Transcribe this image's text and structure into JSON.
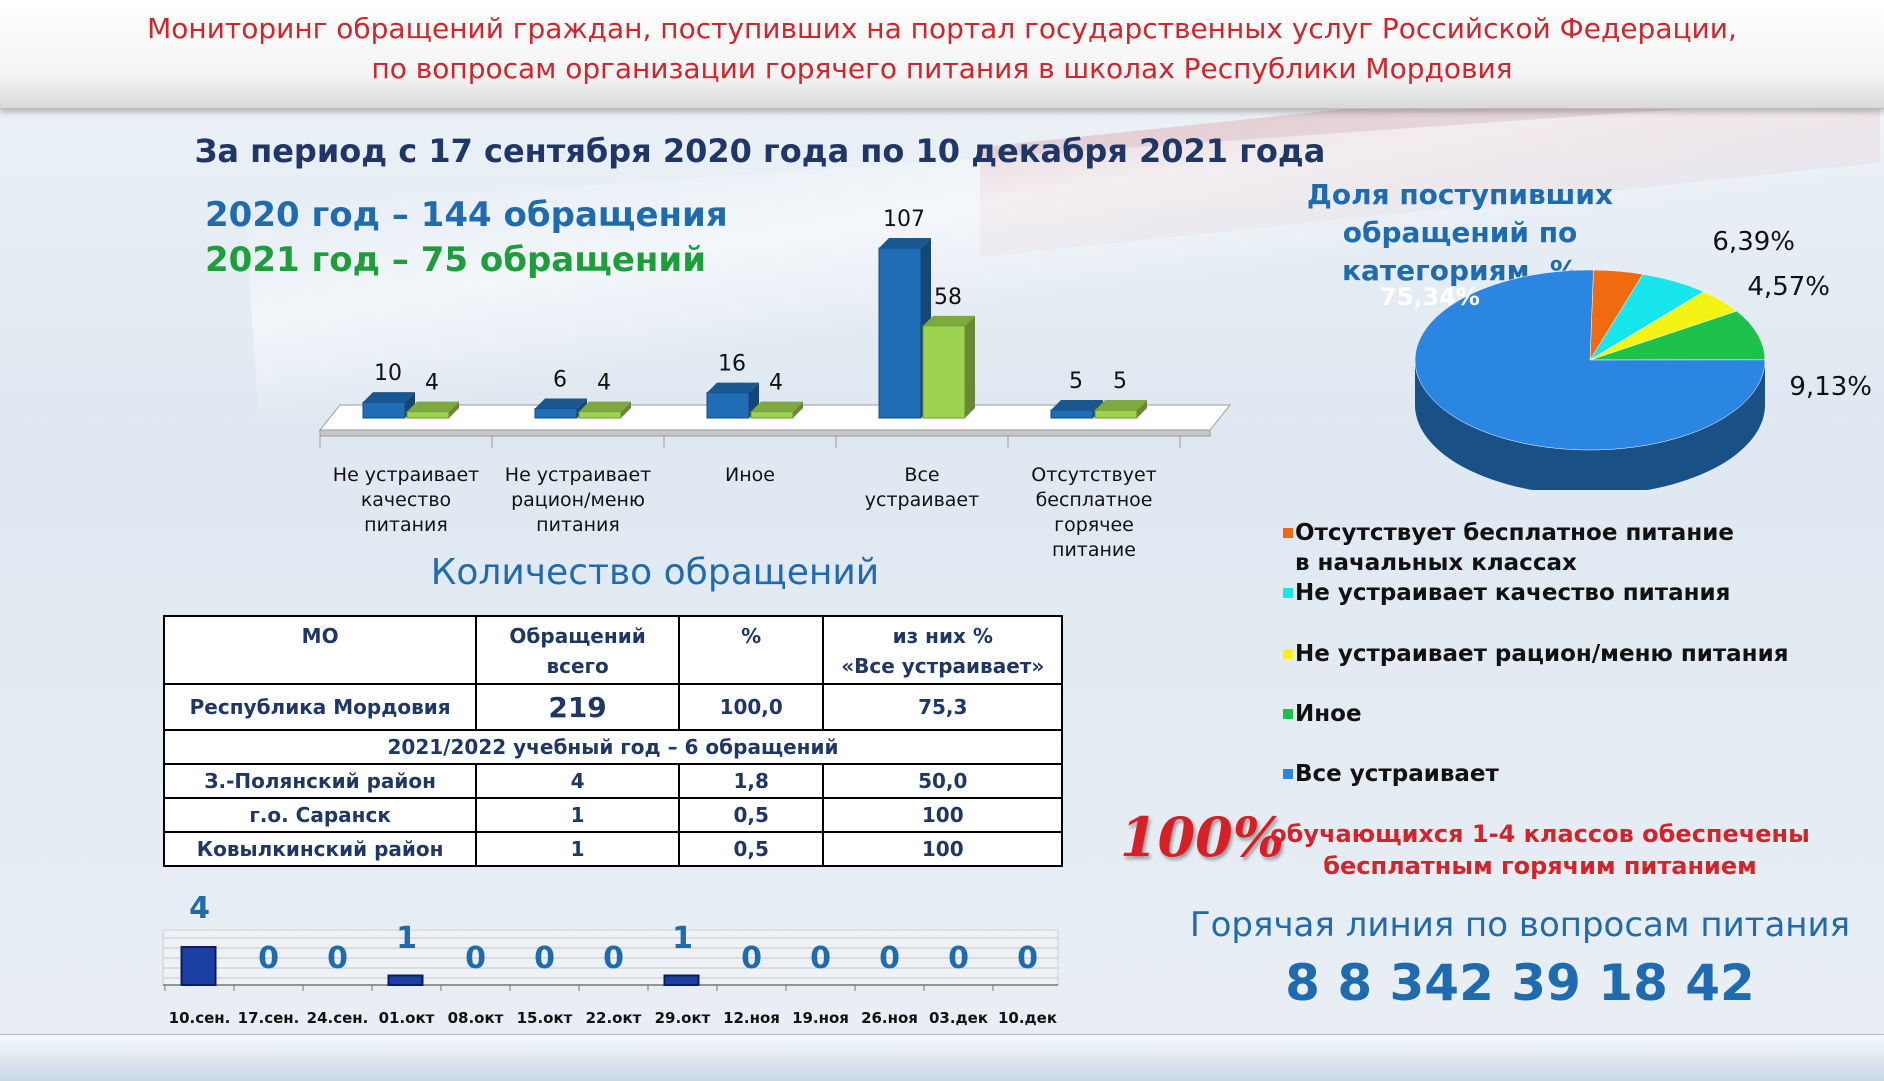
{
  "header": {
    "line1": "Мониторинг обращений граждан, поступивших на портал государственных услуг Российской Федерации,",
    "line2": "по вопросам организации горячего питания в школах Республики Мордовия"
  },
  "period": "За период с 17 сентября 2020 года по 10 декабря 2021 года",
  "totals": {
    "y2020": "2020 год – 144 обращения",
    "y2021": "2021 год – 75 обращений"
  },
  "chart_data": [
    {
      "type": "bar",
      "categories": [
        "Не устраивает качество питания",
        "Не устраивает рацион/меню питания",
        "Иное",
        "Все устраивает",
        "Отсутствует бесплатное горячее питание"
      ],
      "category_lines": [
        [
          "Не устраивает",
          "качество",
          "питания"
        ],
        [
          "Не устраивает",
          "рацион/меню",
          "питания"
        ],
        [
          "Иное"
        ],
        [
          "Все",
          "устраивает"
        ],
        [
          "Отсутствует",
          "бесплатное",
          "горячее",
          "питание"
        ]
      ],
      "series": [
        {
          "values": [
            10,
            6,
            16,
            107,
            5
          ]
        },
        {
          "values": [
            4,
            4,
            4,
            58,
            5
          ]
        }
      ],
      "colors": [
        "#1f6db4",
        "#9ed34f"
      ]
    },
    {
      "type": "pie",
      "title": "Доля поступивших обращений по категориям, %",
      "slices": [
        {
          "label": "Все устраивает",
          "value": 75.34,
          "text": "75,34%",
          "color": "#2a86e0"
        },
        {
          "label": "Отсутствует бесплатное питание в начальных классах",
          "value": 4.57,
          "text": "4,57%",
          "color": "#f26a10"
        },
        {
          "label": "Не устраивает качество питания",
          "value": 6.39,
          "text": "6,39%",
          "color": "#17e6ee"
        },
        {
          "label": "Не устраивает рацион/меню питания",
          "value": 4.57,
          "text": "4,57%",
          "color": "#f4f414"
        },
        {
          "label": "Иное",
          "value": 9.13,
          "text": "9,13%",
          "color": "#1ec24a"
        }
      ]
    },
    {
      "type": "bar",
      "categories": [
        "10.сен.",
        "17.сен.",
        "24.сен.",
        "01.окт",
        "08.окт",
        "15.окт",
        "22.окт",
        "29.окт",
        "12.ноя",
        "19.ноя",
        "26.ноя",
        "03.дек",
        "10.дек"
      ],
      "values": [
        4,
        0,
        0,
        1,
        0,
        0,
        0,
        1,
        0,
        0,
        0,
        0,
        0
      ]
    }
  ],
  "legend": {
    "items": [
      {
        "line1": "Отсутствует бесплатное питание",
        "line2": "в начальных классах",
        "color": "#f26a10"
      },
      {
        "line1": "Не устраивает качество питания",
        "line2": "",
        "color": "#17e6ee"
      },
      {
        "line1": "Не устраивает рацион/меню питания",
        "line2": "",
        "color": "#f4f414"
      },
      {
        "line1": "Иное",
        "line2": "",
        "color": "#1ec24a"
      },
      {
        "line1": "Все устраивает",
        "line2": "",
        "color": "#2a86e0"
      }
    ]
  },
  "qty_title": "Количество обращений",
  "table": {
    "headers": {
      "mo": "МО",
      "total_line1": "Обращений",
      "total_line2": "всего",
      "pct": "%",
      "ok_line1": "из них %",
      "ok_line2": "«Все устраивает»"
    },
    "total_row": [
      "Республика Мордовия",
      "219",
      "100,0",
      "75,3"
    ],
    "section": "2021/2022 учебный год – 6 обращений",
    "rows": [
      [
        "З.-Полянский район",
        "4",
        "1,8",
        "50,0"
      ],
      [
        "г.о. Саранск",
        "1",
        "0,5",
        "100"
      ],
      [
        "Ковылкинский район",
        "1",
        "0,5",
        "100"
      ]
    ]
  },
  "coverage": {
    "percent": "100%",
    "line1": "обучающихся 1-4  классов обеспечены",
    "line2": "бесплатным горячим питанием"
  },
  "hotline": {
    "label": "Горячая линия по вопросам питания",
    "number": "8 8 342 39 18 42"
  }
}
